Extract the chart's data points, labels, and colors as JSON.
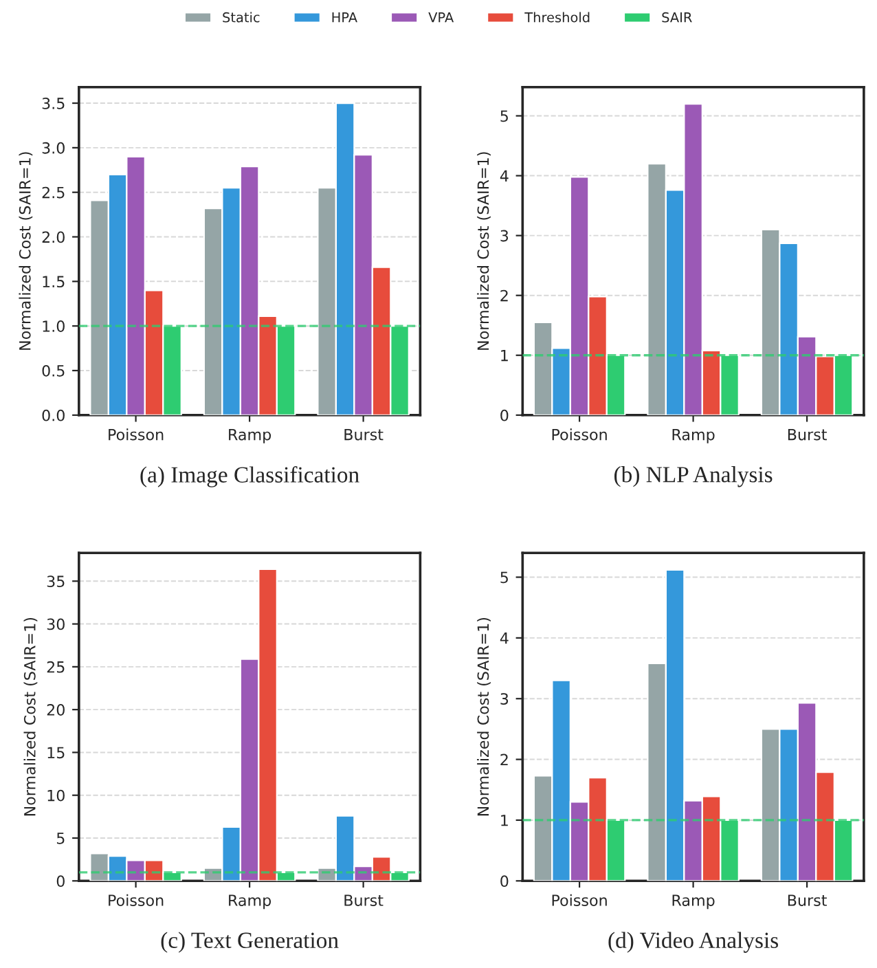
{
  "chart_data": [
    {
      "type": "bar",
      "xlabel": "(a) Image Classification",
      "ylabel": "Normalized Cost (SAIR=1)",
      "categories": [
        "Poisson",
        "Ramp",
        "Burst"
      ],
      "ylim": [
        0,
        3.68
      ],
      "yticks": [
        {
          "value": 0,
          "label": "0.0"
        },
        {
          "value": 0.5,
          "label": "0.5"
        },
        {
          "value": 1,
          "label": "1.0"
        },
        {
          "value": 1.5,
          "label": "1.5"
        },
        {
          "value": 2,
          "label": "2.0"
        },
        {
          "value": 2.5,
          "label": "2.5"
        },
        {
          "value": 3,
          "label": "3.0"
        },
        {
          "value": 3.5,
          "label": "3.5"
        }
      ],
      "grid": "y",
      "legend": "top",
      "ref_lines": [
        {
          "axis": "y",
          "value": 1,
          "color": "#2ecc71",
          "line_style": "dashed"
        }
      ],
      "series": [
        {
          "name": "Static",
          "color": "#95a5a6",
          "values": [
            2.41,
            2.32,
            2.55
          ]
        },
        {
          "name": "HPA",
          "color": "#3498db",
          "values": [
            2.7,
            2.55,
            3.5
          ]
        },
        {
          "name": "VPA",
          "color": "#9b59b6",
          "values": [
            2.9,
            2.79,
            2.92
          ]
        },
        {
          "name": "Threshold",
          "color": "#e74c3c",
          "values": [
            1.4,
            1.11,
            1.66
          ]
        },
        {
          "name": "SAIR",
          "color": "#2ecc71",
          "values": [
            1,
            1,
            1
          ]
        }
      ]
    },
    {
      "type": "bar",
      "xlabel": "(b) NLP Analysis",
      "ylabel": "Normalized Cost (SAIR=1)",
      "categories": [
        "Poisson",
        "Ramp",
        "Burst"
      ],
      "ylim": [
        0,
        5.48
      ],
      "yticks": [
        0,
        1,
        2,
        3,
        4,
        5
      ],
      "grid": "y",
      "ref_lines": [
        {
          "axis": "y",
          "value": 1,
          "color": "#2ecc71",
          "line_style": "dashed"
        }
      ],
      "series": [
        {
          "color": "#95a5a6",
          "values": [
            1.55,
            4.2,
            3.1
          ]
        },
        {
          "color": "#3498db",
          "values": [
            1.12,
            3.76,
            2.87
          ]
        },
        {
          "color": "#9b59b6",
          "values": [
            3.98,
            5.2,
            1.31
          ]
        },
        {
          "color": "#e74c3c",
          "values": [
            1.98,
            1.08,
            0.98
          ]
        },
        {
          "color": "#2ecc71",
          "values": [
            1,
            1,
            1
          ]
        }
      ]
    },
    {
      "type": "bar",
      "xlabel": "(c) Text Generation",
      "ylabel": "Normalized Cost (SAIR=1)",
      "categories": [
        "Poisson",
        "Ramp",
        "Burst"
      ],
      "ylim": [
        0,
        38.3
      ],
      "yticks": [
        0,
        5,
        10,
        15,
        20,
        25,
        30,
        35
      ],
      "grid": "y",
      "ref_lines": [
        {
          "axis": "y",
          "value": 1,
          "color": "#2ecc71",
          "line_style": "dashed"
        }
      ],
      "series": [
        {
          "color": "#95a5a6",
          "values": [
            3.2,
            1.5,
            1.5
          ]
        },
        {
          "color": "#3498db",
          "values": [
            2.9,
            6.3,
            7.6
          ]
        },
        {
          "color": "#9b59b6",
          "values": [
            2.4,
            25.9,
            1.7
          ]
        },
        {
          "color": "#e74c3c",
          "values": [
            2.4,
            36.4,
            2.8
          ]
        },
        {
          "color": "#2ecc71",
          "values": [
            1,
            1,
            1
          ]
        }
      ]
    },
    {
      "type": "bar",
      "xlabel": "(d) Video Analysis",
      "ylabel": "Normalized Cost (SAIR=1)",
      "categories": [
        "Poisson",
        "Ramp",
        "Burst"
      ],
      "ylim": [
        0,
        5.4
      ],
      "yticks": [
        0,
        1,
        2,
        3,
        4,
        5
      ],
      "grid": "y",
      "ref_lines": [
        {
          "axis": "y",
          "value": 1,
          "color": "#2ecc71",
          "line_style": "dashed"
        }
      ],
      "series": [
        {
          "color": "#95a5a6",
          "values": [
            1.73,
            3.58,
            2.5
          ]
        },
        {
          "color": "#3498db",
          "values": [
            3.3,
            5.12,
            2.5
          ]
        },
        {
          "color": "#9b59b6",
          "values": [
            1.3,
            1.32,
            2.93
          ]
        },
        {
          "color": "#e74c3c",
          "values": [
            1.7,
            1.39,
            1.79
          ]
        },
        {
          "color": "#2ecc71",
          "values": [
            1,
            1,
            1
          ]
        }
      ]
    }
  ]
}
